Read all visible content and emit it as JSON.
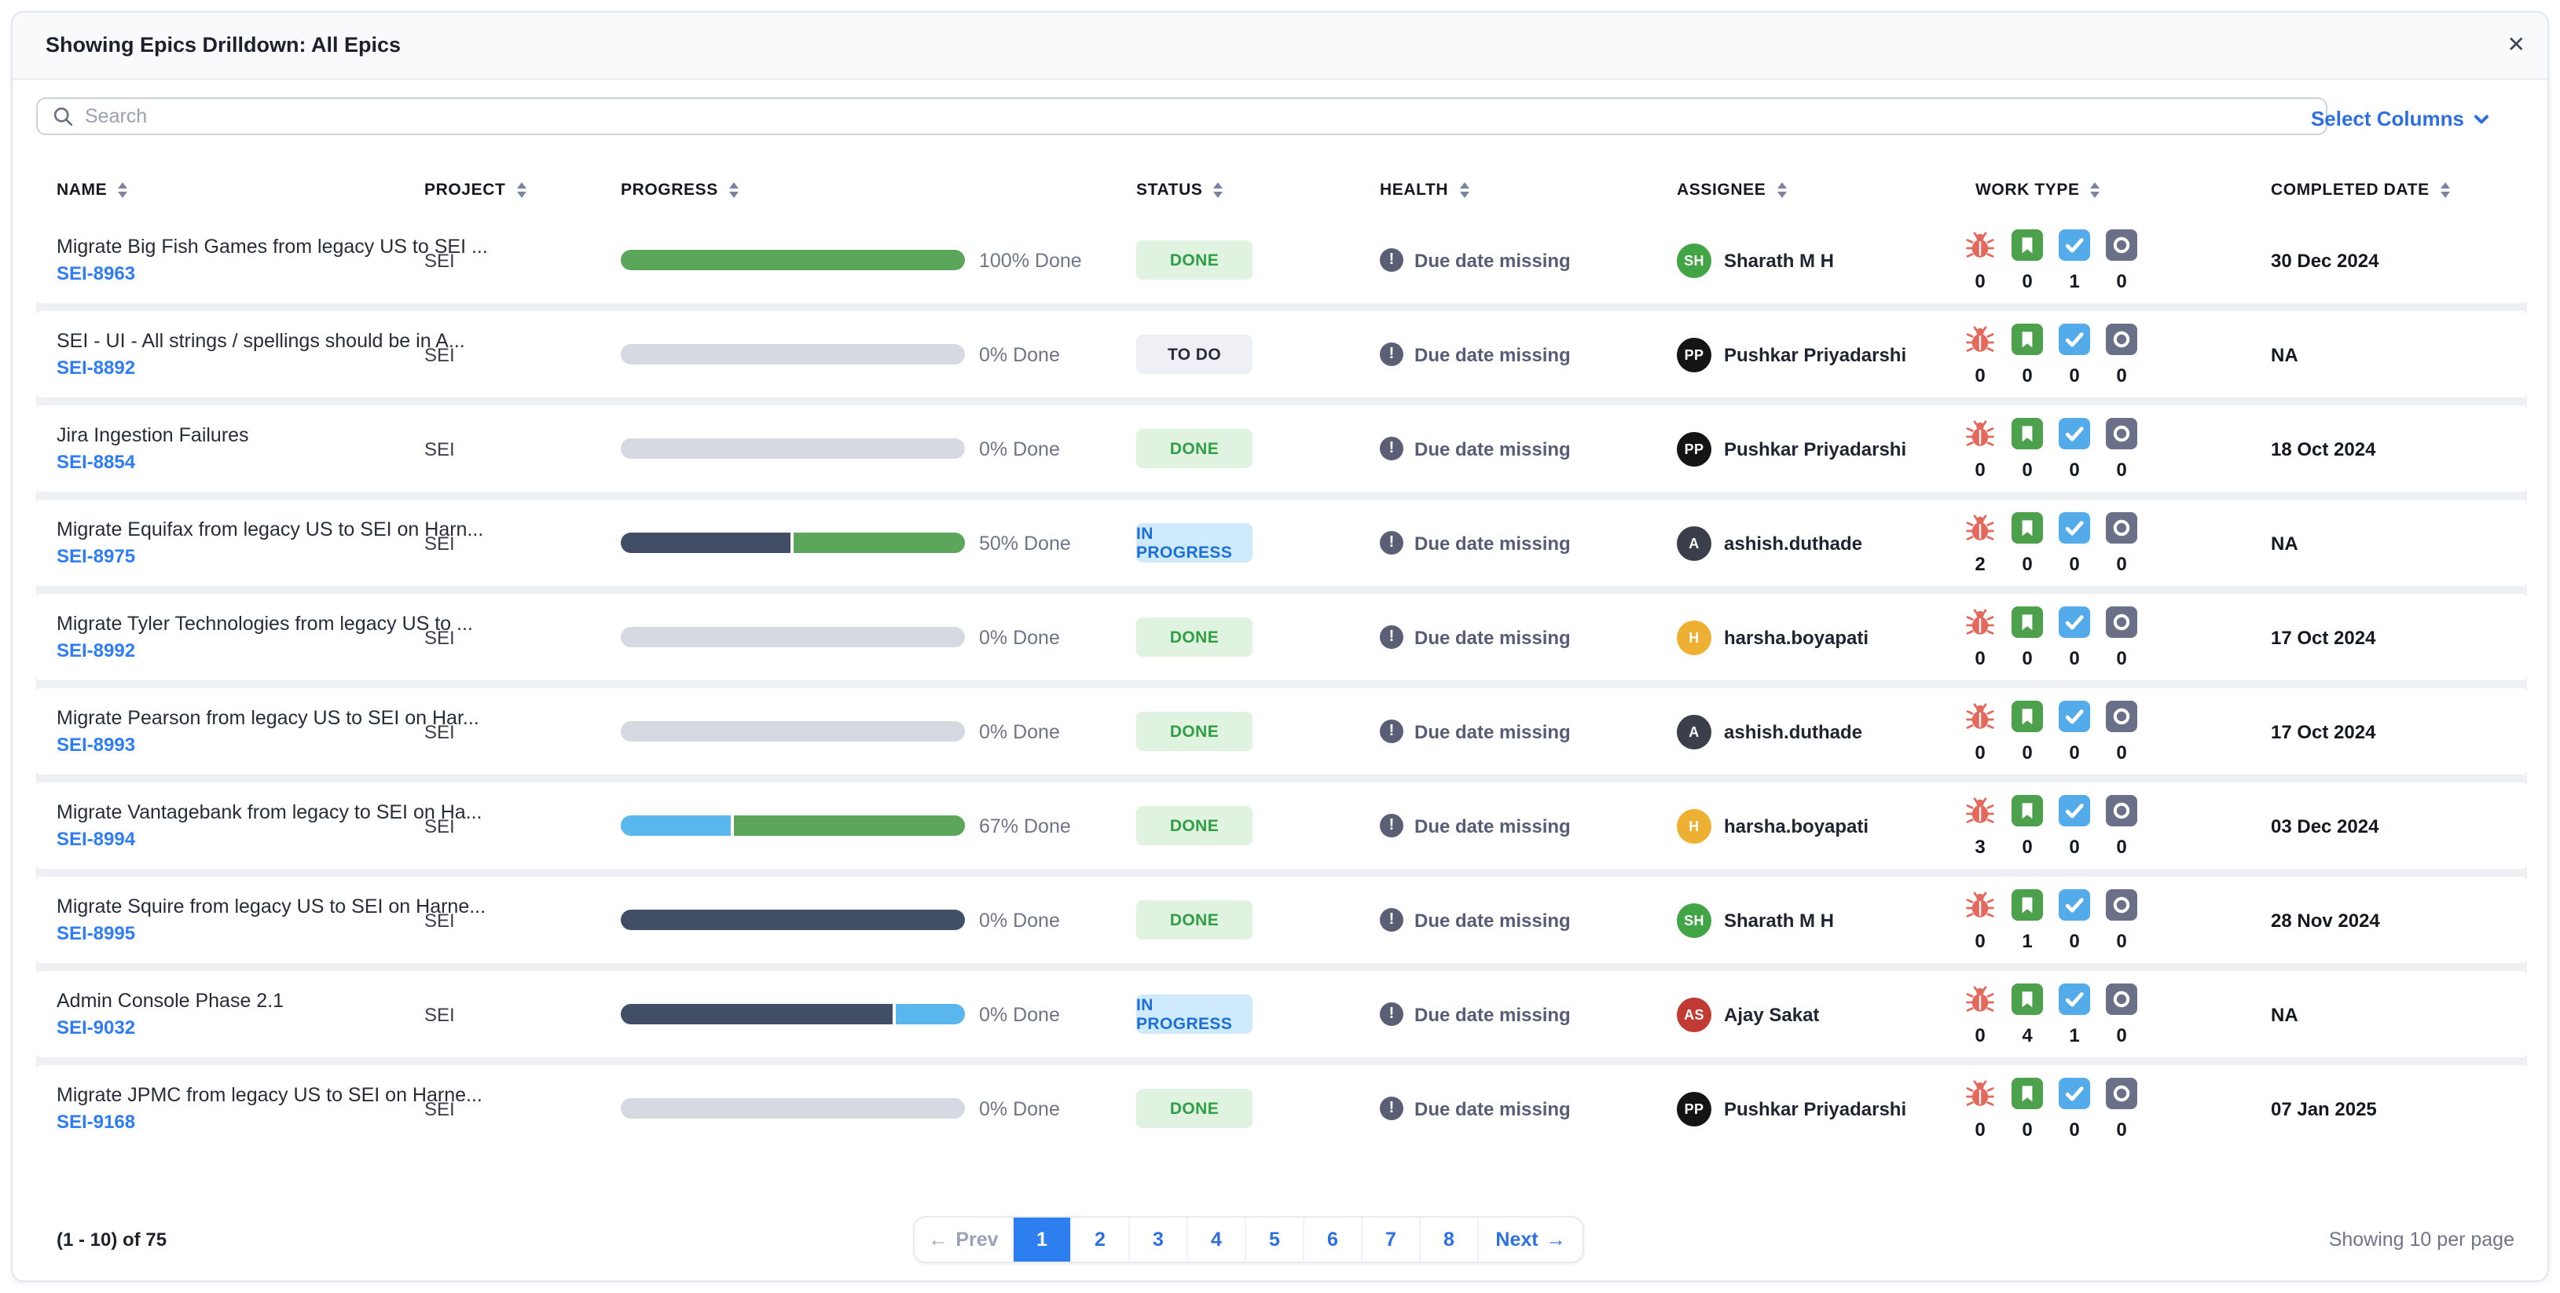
{
  "panel": {
    "title": "Showing Epics Drilldown: All Epics",
    "close_icon": "✕"
  },
  "toolbar": {
    "search_placeholder": "Search",
    "select_columns_label": "Select Columns"
  },
  "colors": {
    "accent": "#2d6fe0",
    "link": "#2e7cf6",
    "active_page_bg": "#2d7ff0",
    "prev_disabled": "#9aa2b5",
    "bar_green": "#5ba65a",
    "bar_navy": "#414e66",
    "bar_blue": "#59b7ee",
    "bar_gray": "#d7d9e2",
    "done_bg": "#e0f2e0",
    "done_text": "#2f9e44",
    "todo_bg": "#eef0f5",
    "todo_text": "#272c36",
    "inprogress_bg": "#cfeafc",
    "inprogress_text": "#1b6fd8",
    "health_icon": "#5a5f76",
    "bug_icon": "#e4695c",
    "story_icon": "#4da14d",
    "task_icon": "#53abea",
    "other_icon": "#6a7088"
  },
  "table": {
    "columns": [
      "NAME",
      "PROJECT",
      "PROGRESS",
      "STATUS",
      "HEALTH",
      "ASSIGNEE",
      "WORK TYPE",
      "COMPLETED DATE"
    ],
    "work_type_icons": [
      "bug-icon",
      "story-icon",
      "task-icon",
      "other-work-icon"
    ],
    "rows": [
      {
        "name": "Migrate Big Fish Games from legacy US to SEI ...",
        "key": "SEI-8963",
        "project": "SEI",
        "progress": {
          "label": "100% Done",
          "segments": [
            {
              "pct": 100,
              "color": "green"
            }
          ]
        },
        "status": {
          "label": "DONE",
          "type": "done"
        },
        "health": "Due date missing",
        "assignee": {
          "initials": "SH",
          "color": "#41a545",
          "name": "Sharath M H"
        },
        "work_counts": [
          0,
          0,
          1,
          0
        ],
        "completed": "30 Dec 2024"
      },
      {
        "name": "SEI - UI - All strings / spellings should be in A...",
        "key": "SEI-8892",
        "project": "SEI",
        "progress": {
          "label": "0% Done",
          "segments": [
            {
              "pct": 100,
              "color": "gray"
            }
          ]
        },
        "status": {
          "label": "TO DO",
          "type": "todo"
        },
        "health": "Due date missing",
        "assignee": {
          "initials": "PP",
          "color": "#141414",
          "name": "Pushkar Priyadarshi"
        },
        "work_counts": [
          0,
          0,
          0,
          0
        ],
        "completed": "NA"
      },
      {
        "name": "Jira Ingestion Failures",
        "key": "SEI-8854",
        "project": "SEI",
        "progress": {
          "label": "0% Done",
          "segments": [
            {
              "pct": 100,
              "color": "gray"
            }
          ]
        },
        "status": {
          "label": "DONE",
          "type": "done"
        },
        "health": "Due date missing",
        "assignee": {
          "initials": "PP",
          "color": "#141414",
          "name": "Pushkar Priyadarshi"
        },
        "work_counts": [
          0,
          0,
          0,
          0
        ],
        "completed": "18 Oct 2024"
      },
      {
        "name": "Migrate Equifax from legacy US to SEI on Harn...",
        "key": "SEI-8975",
        "project": "SEI",
        "progress": {
          "label": "50% Done",
          "segments": [
            {
              "pct": 50,
              "color": "navy"
            },
            {
              "pct": 50,
              "color": "green"
            }
          ]
        },
        "status": {
          "label": "IN PROGRESS",
          "type": "inprogress"
        },
        "health": "Due date missing",
        "assignee": {
          "initials": "A",
          "color": "#3a3f4b",
          "name": "ashish.duthade"
        },
        "work_counts": [
          2,
          0,
          0,
          0
        ],
        "completed": "NA"
      },
      {
        "name": "Migrate Tyler Technologies from legacy US to ...",
        "key": "SEI-8992",
        "project": "SEI",
        "progress": {
          "label": "0% Done",
          "segments": [
            {
              "pct": 100,
              "color": "gray"
            }
          ]
        },
        "status": {
          "label": "DONE",
          "type": "done"
        },
        "health": "Due date missing",
        "assignee": {
          "initials": "H",
          "color": "#eeb033",
          "name": "harsha.boyapati"
        },
        "work_counts": [
          0,
          0,
          0,
          0
        ],
        "completed": "17 Oct 2024"
      },
      {
        "name": "Migrate Pearson from legacy US to SEI on Har...",
        "key": "SEI-8993",
        "project": "SEI",
        "progress": {
          "label": "0% Done",
          "segments": [
            {
              "pct": 100,
              "color": "gray"
            }
          ]
        },
        "status": {
          "label": "DONE",
          "type": "done"
        },
        "health": "Due date missing",
        "assignee": {
          "initials": "A",
          "color": "#3a3f4b",
          "name": "ashish.duthade"
        },
        "work_counts": [
          0,
          0,
          0,
          0
        ],
        "completed": "17 Oct 2024"
      },
      {
        "name": "Migrate Vantagebank from legacy to SEI on Ha...",
        "key": "SEI-8994",
        "project": "SEI",
        "progress": {
          "label": "67% Done",
          "segments": [
            {
              "pct": 33,
              "color": "blue"
            },
            {
              "pct": 67,
              "color": "green"
            }
          ]
        },
        "status": {
          "label": "DONE",
          "type": "done"
        },
        "health": "Due date missing",
        "assignee": {
          "initials": "H",
          "color": "#eeb033",
          "name": "harsha.boyapati"
        },
        "work_counts": [
          3,
          0,
          0,
          0
        ],
        "completed": "03 Dec 2024"
      },
      {
        "name": "Migrate Squire from legacy US to SEI on Harne...",
        "key": "SEI-8995",
        "project": "SEI",
        "progress": {
          "label": "0% Done",
          "segments": [
            {
              "pct": 100,
              "color": "navy"
            }
          ]
        },
        "status": {
          "label": "DONE",
          "type": "done"
        },
        "health": "Due date missing",
        "assignee": {
          "initials": "SH",
          "color": "#41a545",
          "name": "Sharath M H"
        },
        "work_counts": [
          0,
          1,
          0,
          0
        ],
        "completed": "28 Nov 2024"
      },
      {
        "name": "Admin Console Phase 2.1",
        "key": "SEI-9032",
        "project": "SEI",
        "progress": {
          "label": "0% Done",
          "segments": [
            {
              "pct": 80,
              "color": "navy"
            },
            {
              "pct": 20,
              "color": "blue"
            }
          ]
        },
        "status": {
          "label": "IN PROGRESS",
          "type": "inprogress"
        },
        "health": "Due date missing",
        "assignee": {
          "initials": "AS",
          "color": "#c13a34",
          "name": "Ajay Sakat"
        },
        "work_counts": [
          0,
          4,
          1,
          0
        ],
        "completed": "NA"
      },
      {
        "name": "Migrate JPMC from legacy US to SEI on Harne...",
        "key": "SEI-9168",
        "project": "SEI",
        "progress": {
          "label": "0% Done",
          "segments": [
            {
              "pct": 100,
              "color": "gray"
            }
          ]
        },
        "status": {
          "label": "DONE",
          "type": "done"
        },
        "health": "Due date missing",
        "assignee": {
          "initials": "PP",
          "color": "#141414",
          "name": "Pushkar Priyadarshi"
        },
        "work_counts": [
          0,
          0,
          0,
          0
        ],
        "completed": "07 Jan 2025"
      }
    ]
  },
  "footer": {
    "range_label": "(1 - 10) of 75",
    "prev_label": "Prev",
    "next_label": "Next",
    "pages": [
      "1",
      "2",
      "3",
      "4",
      "5",
      "6",
      "7",
      "8"
    ],
    "active_page": "1",
    "per_page_label": "Showing 10 per page"
  }
}
